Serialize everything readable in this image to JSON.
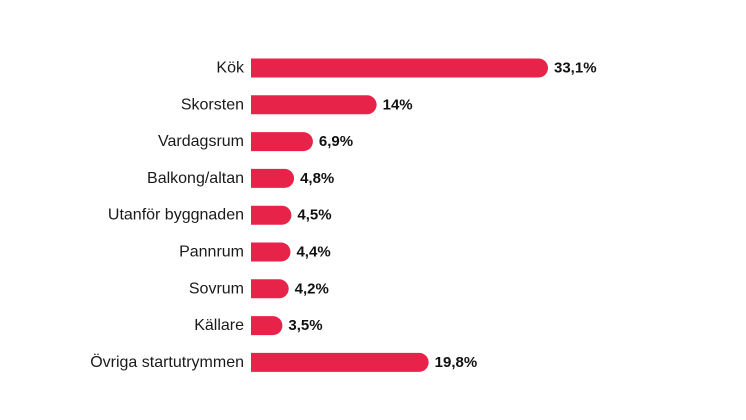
{
  "chart_data": {
    "type": "bar",
    "orientation": "horizontal",
    "categories": [
      "Kök",
      "Skorsten",
      "Vardagsrum",
      "Balkong/altan",
      "Utanför byggnaden",
      "Pannrum",
      "Sovrum",
      "Källare",
      "Övriga startutrymmen"
    ],
    "values": [
      33.1,
      14,
      6.9,
      4.8,
      4.5,
      4.4,
      4.2,
      3.5,
      19.8
    ],
    "value_labels": [
      "33,1%",
      "14%",
      "6,9%",
      "4,8%",
      "4,5%",
      "4,4%",
      "4,2%",
      "3,5%",
      "19,8%"
    ],
    "title": "",
    "xlabel": "",
    "ylabel": "",
    "xlim": [
      0,
      33.1
    ],
    "grid": false,
    "legend": "none",
    "bar_color": "#e8234a"
  }
}
